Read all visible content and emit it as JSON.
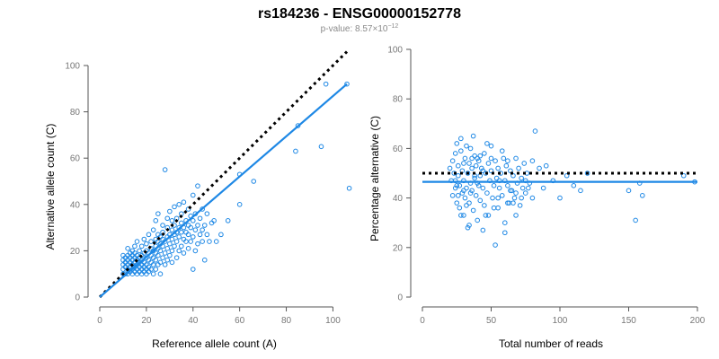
{
  "title": "rs184236 - ENSG00000152778",
  "subtitle_prefix": "p-value: 8.57×10",
  "subtitle_exponent": "−12",
  "colors": {
    "points": "#1e88e5",
    "fit": "#1e88e5",
    "reference": "#000000",
    "axis": "#555555"
  },
  "chart_data": [
    {
      "type": "scatter",
      "title": "",
      "xlabel": "Reference allele count (A)",
      "ylabel": "Alternative allele count (C)",
      "xlim": [
        0,
        106
      ],
      "ylim": [
        0,
        100
      ],
      "xticks": [
        0,
        20,
        40,
        60,
        80,
        100
      ],
      "yticks": [
        0,
        20,
        40,
        60,
        80,
        100
      ],
      "fit_line": {
        "x": [
          0,
          106
        ],
        "y": [
          0,
          92
        ]
      },
      "reference_line": {
        "x": [
          0,
          106
        ],
        "y": [
          0,
          106
        ]
      },
      "points": [
        [
          10,
          10
        ],
        [
          10,
          12
        ],
        [
          10,
          14
        ],
        [
          10,
          16
        ],
        [
          10,
          18
        ],
        [
          11,
          10
        ],
        [
          11,
          13
        ],
        [
          11,
          15
        ],
        [
          11,
          17
        ],
        [
          12,
          10
        ],
        [
          12,
          12
        ],
        [
          12,
          14
        ],
        [
          12,
          16
        ],
        [
          12,
          18
        ],
        [
          12,
          21
        ],
        [
          13,
          11
        ],
        [
          13,
          13
        ],
        [
          13,
          15
        ],
        [
          13,
          17
        ],
        [
          13,
          19
        ],
        [
          14,
          10
        ],
        [
          14,
          12
        ],
        [
          14,
          14
        ],
        [
          14,
          16
        ],
        [
          14,
          18
        ],
        [
          14,
          20
        ],
        [
          15,
          11
        ],
        [
          15,
          13
        ],
        [
          15,
          15
        ],
        [
          15,
          17
        ],
        [
          15,
          19
        ],
        [
          15,
          22
        ],
        [
          16,
          10
        ],
        [
          16,
          12
        ],
        [
          16,
          14
        ],
        [
          16,
          16
        ],
        [
          16,
          18
        ],
        [
          16,
          24
        ],
        [
          17,
          11
        ],
        [
          17,
          13
        ],
        [
          17,
          15
        ],
        [
          17,
          17
        ],
        [
          17,
          20
        ],
        [
          18,
          10
        ],
        [
          18,
          12
        ],
        [
          18,
          14
        ],
        [
          18,
          16
        ],
        [
          18,
          18
        ],
        [
          18,
          22
        ],
        [
          19,
          11
        ],
        [
          19,
          13
        ],
        [
          19,
          15
        ],
        [
          19,
          19
        ],
        [
          19,
          25
        ],
        [
          20,
          10
        ],
        [
          20,
          12
        ],
        [
          20,
          14
        ],
        [
          20,
          17
        ],
        [
          20,
          20
        ],
        [
          20,
          23
        ],
        [
          21,
          11
        ],
        [
          21,
          13
        ],
        [
          21,
          16
        ],
        [
          21,
          19
        ],
        [
          21,
          27
        ],
        [
          22,
          12
        ],
        [
          22,
          15
        ],
        [
          22,
          18
        ],
        [
          22,
          21
        ],
        [
          22,
          24
        ],
        [
          23,
          10
        ],
        [
          23,
          14
        ],
        [
          23,
          17
        ],
        [
          23,
          20
        ],
        [
          23,
          29
        ],
        [
          24,
          12
        ],
        [
          24,
          16
        ],
        [
          24,
          19
        ],
        [
          24,
          22
        ],
        [
          24,
          25
        ],
        [
          24,
          33
        ],
        [
          25,
          14
        ],
        [
          25,
          18
        ],
        [
          25,
          21
        ],
        [
          25,
          24
        ],
        [
          25,
          27
        ],
        [
          25,
          36
        ],
        [
          26,
          10
        ],
        [
          26,
          15
        ],
        [
          26,
          20
        ],
        [
          26,
          23
        ],
        [
          26,
          26
        ],
        [
          27,
          17
        ],
        [
          27,
          22
        ],
        [
          27,
          25
        ],
        [
          27,
          28
        ],
        [
          27,
          31
        ],
        [
          28,
          14
        ],
        [
          28,
          19
        ],
        [
          28,
          24
        ],
        [
          28,
          55
        ],
        [
          29,
          16
        ],
        [
          29,
          21
        ],
        [
          29,
          26
        ],
        [
          29,
          30
        ],
        [
          29,
          34
        ],
        [
          30,
          18
        ],
        [
          30,
          23
        ],
        [
          30,
          27
        ],
        [
          30,
          37
        ],
        [
          31,
          15
        ],
        [
          31,
          20
        ],
        [
          31,
          25
        ],
        [
          31,
          29
        ],
        [
          31,
          33
        ],
        [
          32,
          22
        ],
        [
          32,
          27
        ],
        [
          32,
          31
        ],
        [
          32,
          39
        ],
        [
          33,
          17
        ],
        [
          33,
          24
        ],
        [
          33,
          28
        ],
        [
          33,
          34
        ],
        [
          34,
          20
        ],
        [
          34,
          26
        ],
        [
          34,
          30
        ],
        [
          34,
          40
        ],
        [
          35,
          22
        ],
        [
          35,
          28
        ],
        [
          35,
          32
        ],
        [
          35,
          36
        ],
        [
          36,
          19
        ],
        [
          36,
          25
        ],
        [
          36,
          30
        ],
        [
          36,
          41
        ],
        [
          37,
          24
        ],
        [
          37,
          28
        ],
        [
          37,
          33
        ],
        [
          38,
          21
        ],
        [
          38,
          27
        ],
        [
          38,
          31
        ],
        [
          38,
          38
        ],
        [
          39,
          24
        ],
        [
          39,
          30
        ],
        [
          39,
          35
        ],
        [
          40,
          12
        ],
        [
          40,
          26
        ],
        [
          40,
          33
        ],
        [
          40,
          44
        ],
        [
          41,
          20
        ],
        [
          41,
          29
        ],
        [
          41,
          36
        ],
        [
          42,
          23
        ],
        [
          42,
          31
        ],
        [
          42,
          48
        ],
        [
          43,
          27
        ],
        [
          43,
          34
        ],
        [
          44,
          24
        ],
        [
          44,
          29
        ],
        [
          44,
          38
        ],
        [
          45,
          16
        ],
        [
          45,
          31
        ],
        [
          46,
          27
        ],
        [
          46,
          36
        ],
        [
          47,
          24
        ],
        [
          48,
          32
        ],
        [
          49,
          33
        ],
        [
          50,
          24
        ],
        [
          52,
          27
        ],
        [
          55,
          33
        ],
        [
          60,
          40
        ],
        [
          60,
          53
        ],
        [
          66,
          50
        ],
        [
          84,
          63
        ],
        [
          85,
          74
        ],
        [
          95,
          65
        ],
        [
          97,
          92
        ],
        [
          106,
          92
        ],
        [
          107,
          47
        ]
      ]
    },
    {
      "type": "scatter",
      "title": "",
      "xlabel": "Total number of reads",
      "ylabel": "Percentage alternative (C)",
      "xlim": [
        0,
        200
      ],
      "ylim": [
        0,
        100
      ],
      "xticks": [
        0,
        50,
        100,
        150,
        200
      ],
      "yticks": [
        0,
        20,
        40,
        60,
        80,
        100
      ],
      "fit_line": {
        "x": [
          0,
          200
        ],
        "y": [
          46.5,
          46.5
        ]
      },
      "reference_line": {
        "x": [
          0,
          200
        ],
        "y": [
          50,
          50
        ]
      },
      "points": [
        [
          20,
          52
        ],
        [
          21,
          47
        ],
        [
          22,
          55
        ],
        [
          22,
          41
        ],
        [
          23,
          50
        ],
        [
          24,
          58
        ],
        [
          24,
          44
        ],
        [
          25,
          38
        ],
        [
          25,
          62
        ],
        [
          26,
          49
        ],
        [
          26,
          53
        ],
        [
          27,
          36
        ],
        [
          27,
          45
        ],
        [
          28,
          59
        ],
        [
          28,
          64
        ],
        [
          29,
          42
        ],
        [
          29,
          51
        ],
        [
          30,
          47
        ],
        [
          30,
          33
        ],
        [
          31,
          56
        ],
        [
          31,
          40
        ],
        [
          32,
          61
        ],
        [
          32,
          44
        ],
        [
          33,
          50
        ],
        [
          33,
          28
        ],
        [
          34,
          54
        ],
        [
          34,
          38
        ],
        [
          35,
          60
        ],
        [
          35,
          46
        ],
        [
          36,
          43
        ],
        [
          36,
          52
        ],
        [
          37,
          65
        ],
        [
          37,
          35
        ],
        [
          38,
          48
        ],
        [
          38,
          57
        ],
        [
          39,
          41
        ],
        [
          39,
          53
        ],
        [
          40,
          46
        ],
        [
          40,
          31
        ],
        [
          41,
          55
        ],
        [
          42,
          49
        ],
        [
          42,
          39
        ],
        [
          43,
          52
        ],
        [
          44,
          44
        ],
        [
          45,
          58
        ],
        [
          45,
          37
        ],
        [
          46,
          50
        ],
        [
          47,
          42
        ],
        [
          48,
          54
        ],
        [
          48,
          33
        ],
        [
          49,
          47
        ],
        [
          50,
          51
        ],
        [
          50,
          61
        ],
        [
          51,
          40
        ],
        [
          52,
          45
        ],
        [
          53,
          55
        ],
        [
          54,
          48
        ],
        [
          55,
          36
        ],
        [
          55,
          52
        ],
        [
          56,
          44
        ],
        [
          57,
          50
        ],
        [
          58,
          41
        ],
        [
          59,
          56
        ],
        [
          60,
          47
        ],
        [
          60,
          30
        ],
        [
          61,
          53
        ],
        [
          62,
          45
        ],
        [
          63,
          38
        ],
        [
          64,
          51
        ],
        [
          65,
          43
        ],
        [
          66,
          49
        ],
        [
          67,
          40
        ],
        [
          68,
          56
        ],
        [
          69,
          46
        ],
        [
          70,
          52
        ],
        [
          71,
          37
        ],
        [
          72,
          48
        ],
        [
          73,
          44
        ],
        [
          74,
          54
        ],
        [
          75,
          42
        ],
        [
          76,
          50
        ],
        [
          78,
          46
        ],
        [
          80,
          40
        ],
        [
          82,
          67
        ],
        [
          85,
          52
        ],
        [
          88,
          44
        ],
        [
          90,
          53
        ],
        [
          95,
          47
        ],
        [
          100,
          40
        ],
        [
          105,
          49
        ],
        [
          110,
          45
        ],
        [
          115,
          43
        ],
        [
          120,
          50
        ],
        [
          150,
          43
        ],
        [
          155,
          31
        ],
        [
          158,
          46
        ],
        [
          160,
          41
        ],
        [
          190,
          49
        ],
        [
          198,
          46.5
        ],
        [
          44,
          27
        ],
        [
          53,
          21
        ],
        [
          60,
          26
        ],
        [
          66,
          38
        ],
        [
          40,
          56
        ],
        [
          47,
          62
        ],
        [
          35,
          42
        ],
        [
          28,
          33
        ],
        [
          24,
          47
        ],
        [
          30,
          54
        ],
        [
          38,
          49
        ],
        [
          58,
          59
        ],
        [
          64,
          43
        ],
        [
          72,
          40
        ],
        [
          77,
          44
        ],
        [
          52,
          36
        ],
        [
          46,
          33
        ],
        [
          34,
          29
        ],
        [
          26,
          41
        ],
        [
          32,
          37
        ],
        [
          42,
          57
        ],
        [
          56,
          47
        ],
        [
          62,
          55
        ],
        [
          68,
          42
        ],
        [
          75,
          47
        ],
        [
          80,
          55
        ],
        [
          68,
          33
        ],
        [
          50,
          56
        ],
        [
          30,
          43
        ],
        [
          36,
          56
        ],
        [
          44,
          51
        ],
        [
          25,
          45
        ],
        [
          62,
          38
        ],
        [
          55,
          40
        ],
        [
          41,
          45
        ]
      ]
    }
  ]
}
